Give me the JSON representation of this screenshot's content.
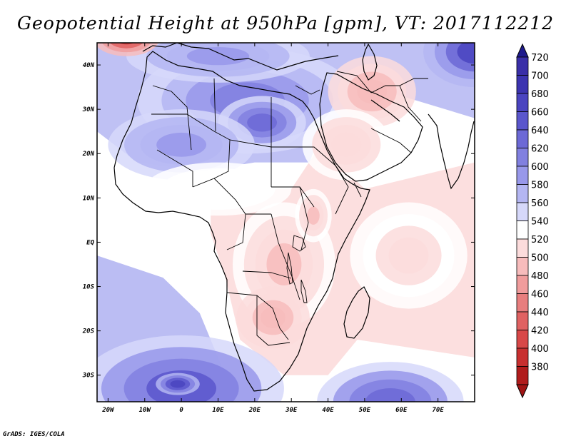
{
  "title": "Geopotential Height at 950hPa [gpm], VT: 2017112212",
  "credit": "GrADS: IGES/COLA",
  "map": {
    "lon_range": [
      -23,
      80
    ],
    "lat_range": [
      -36,
      45
    ],
    "lat_ticks": [
      {
        "lat": 40,
        "label": "40N"
      },
      {
        "lat": 30,
        "label": "30N"
      },
      {
        "lat": 20,
        "label": "20N"
      },
      {
        "lat": 10,
        "label": "10N"
      },
      {
        "lat": 0,
        "label": "EQ"
      },
      {
        "lat": -10,
        "label": "10S"
      },
      {
        "lat": -20,
        "label": "20S"
      },
      {
        "lat": -30,
        "label": "30S"
      }
    ],
    "lon_ticks": [
      {
        "lon": -20,
        "label": "20W"
      },
      {
        "lon": -10,
        "label": "10W"
      },
      {
        "lon": 0,
        "label": "0"
      },
      {
        "lon": 10,
        "label": "10E"
      },
      {
        "lon": 20,
        "label": "20E"
      },
      {
        "lon": 30,
        "label": "30E"
      },
      {
        "lon": 40,
        "label": "40E"
      },
      {
        "lon": 50,
        "label": "50E"
      },
      {
        "lon": 60,
        "label": "60E"
      },
      {
        "lon": 70,
        "label": "70E"
      }
    ],
    "features": [
      {
        "name": "mediterranean-high",
        "lon": 18,
        "lat": 32,
        "rx": 30,
        "ry": 12,
        "value": 622
      },
      {
        "name": "libya-high",
        "lon": 22,
        "lat": 27,
        "rx": 12,
        "ry": 6,
        "value": 640
      },
      {
        "name": "sahara-high",
        "lon": 0,
        "lat": 22,
        "rx": 20,
        "ry": 8,
        "value": 600
      },
      {
        "name": "europe-high",
        "lon": 10,
        "lat": 42,
        "rx": 25,
        "ry": 6,
        "value": 605
      },
      {
        "name": "iran-low",
        "lon": 52,
        "lat": 34,
        "rx": 12,
        "ry": 8,
        "value": 492
      },
      {
        "name": "arabia-low",
        "lon": 45,
        "lat": 22,
        "rx": 12,
        "ry": 8,
        "value": 515
      },
      {
        "name": "central-africa-low",
        "lon": 28,
        "lat": -5,
        "rx": 14,
        "ry": 14,
        "value": 500
      },
      {
        "name": "southern-africa-low",
        "lon": 25,
        "lat": -17,
        "rx": 10,
        "ry": 7,
        "value": 490
      },
      {
        "name": "east-africa-low",
        "lon": 36,
        "lat": 6,
        "rx": 5,
        "ry": 6,
        "value": 500
      },
      {
        "name": "indian-ocean-low",
        "lon": 62,
        "lat": -3,
        "rx": 16,
        "ry": 12,
        "value": 525
      },
      {
        "name": "south-atlantic-high",
        "lon": 0,
        "lat": -33,
        "rx": 28,
        "ry": 12,
        "value": 655
      },
      {
        "name": "south-atlantic-core",
        "lon": -1,
        "lat": -32,
        "rx": 6,
        "ry": 2.5,
        "value": 688
      },
      {
        "name": "southwest-indian-high",
        "lon": 57,
        "lat": -36,
        "rx": 20,
        "ry": 9,
        "value": 640
      },
      {
        "name": "northwest-atlantic-low",
        "lon": -15,
        "lat": 46,
        "rx": 9,
        "ry": 4,
        "value": 400
      },
      {
        "name": "central-asia-high",
        "lon": 80,
        "lat": 43,
        "rx": 14,
        "ry": 8,
        "value": 670
      },
      {
        "name": "sahel-neutral",
        "lon": 10,
        "lat": 12,
        "rx": 20,
        "ry": 6,
        "value": 540
      }
    ]
  },
  "colorbar": {
    "levels": [
      {
        "label": "720",
        "color": "#3a2fa8"
      },
      {
        "label": "700",
        "color": "#3c34b0"
      },
      {
        "label": "680",
        "color": "#4a44c0"
      },
      {
        "label": "660",
        "color": "#5a56cc"
      },
      {
        "label": "640",
        "color": "#6c69d6"
      },
      {
        "label": "620",
        "color": "#8180e0"
      },
      {
        "label": "600",
        "color": "#9898ea"
      },
      {
        "label": "580",
        "color": "#b4b6f2"
      },
      {
        "label": "560",
        "color": "#d6d8fa"
      },
      {
        "label": "540",
        "color": "#ffffff"
      },
      {
        "label": "520",
        "color": "#fcdcdc"
      },
      {
        "label": "500",
        "color": "#f7bcbc"
      },
      {
        "label": "480",
        "color": "#f09c9c"
      },
      {
        "label": "460",
        "color": "#e87e7e"
      },
      {
        "label": "440",
        "color": "#e06262"
      },
      {
        "label": "420",
        "color": "#d84848"
      },
      {
        "label": "400",
        "color": "#c83030"
      },
      {
        "label": "380",
        "color": "#b01c1c"
      }
    ],
    "top_color": "#1e1a8c",
    "bottom_color": "#a01414"
  }
}
